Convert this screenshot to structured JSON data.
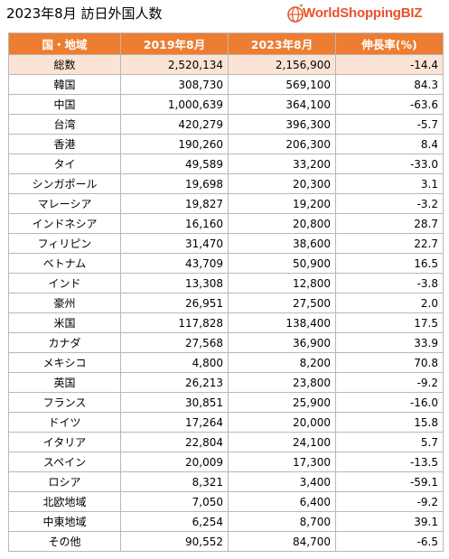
{
  "title": "2023年8月 訪日外国人数",
  "logo": {
    "initial": "W",
    "text": "orldShopping",
    "suffix": "BIZ"
  },
  "colors": {
    "header_bg": "#ed7d31",
    "header_text": "#ffffff",
    "total_row_bg": "#fbe4d5",
    "logo": "#e8532a"
  },
  "table": {
    "headers": [
      "国・地域",
      "2019年8月",
      "2023年8月",
      "伸長率(%)"
    ],
    "rows": [
      [
        "総数",
        "2,520,134",
        "2,156,900",
        "-14.4"
      ],
      [
        "韓国",
        "308,730",
        "569,100",
        "84.3"
      ],
      [
        "中国",
        "1,000,639",
        "364,100",
        "-63.6"
      ],
      [
        "台湾",
        "420,279",
        "396,300",
        "-5.7"
      ],
      [
        "香港",
        "190,260",
        "206,300",
        "8.4"
      ],
      [
        "タイ",
        "49,589",
        "33,200",
        "-33.0"
      ],
      [
        "シンガポール",
        "19,698",
        "20,300",
        "3.1"
      ],
      [
        "マレーシア",
        "19,827",
        "19,200",
        "-3.2"
      ],
      [
        "インドネシア",
        "16,160",
        "20,800",
        "28.7"
      ],
      [
        "フィリピン",
        "31,470",
        "38,600",
        "22.7"
      ],
      [
        "ベトナム",
        "43,709",
        "50,900",
        "16.5"
      ],
      [
        "インド",
        "13,308",
        "12,800",
        "-3.8"
      ],
      [
        "豪州",
        "26,951",
        "27,500",
        "2.0"
      ],
      [
        "米国",
        "117,828",
        "138,400",
        "17.5"
      ],
      [
        "カナダ",
        "27,568",
        "36,900",
        "33.9"
      ],
      [
        "メキシコ",
        "4,800",
        "8,200",
        "70.8"
      ],
      [
        "英国",
        "26,213",
        "23,800",
        "-9.2"
      ],
      [
        "フランス",
        "30,851",
        "25,900",
        "-16.0"
      ],
      [
        "ドイツ",
        "17,264",
        "20,000",
        "15.8"
      ],
      [
        "イタリア",
        "22,804",
        "24,100",
        "5.7"
      ],
      [
        "スペイン",
        "20,009",
        "17,300",
        "-13.5"
      ],
      [
        "ロシア",
        "8,321",
        "3,400",
        "-59.1"
      ],
      [
        "北欧地域",
        "7,050",
        "6,400",
        "-9.2"
      ],
      [
        "中東地域",
        "6,254",
        "8,700",
        "39.1"
      ],
      [
        "その他",
        "90,552",
        "84,700",
        "-6.5"
      ]
    ]
  }
}
